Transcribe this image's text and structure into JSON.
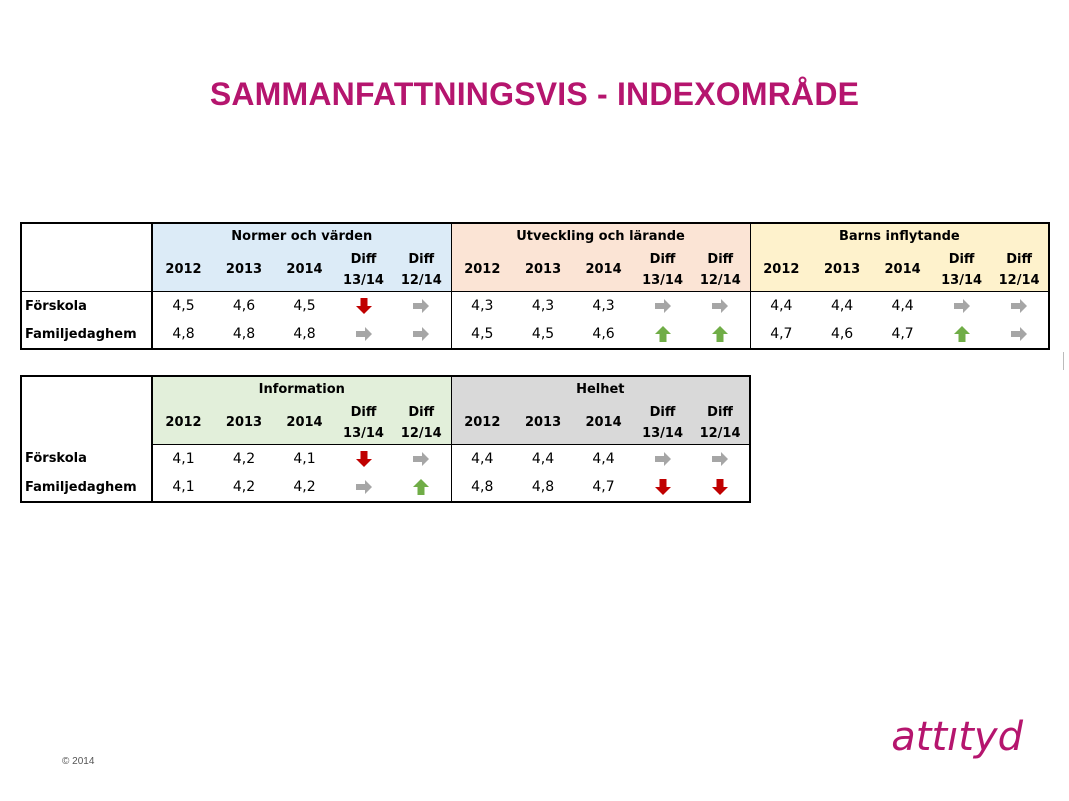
{
  "title": "SAMMANFATTNINGSVIS  - INDEXOMRÅDE",
  "logo": "attıtyd",
  "copyright": "© 2014",
  "colors": {
    "title": "#b5156e",
    "arrow_down": "#c00000",
    "arrow_up": "#70ad47",
    "arrow_flat": "#a6a6a6"
  },
  "col_headers": {
    "y2012": "2012",
    "y2013": "2013",
    "y2014": "2014",
    "diff": "Diff",
    "d1314": "13/14",
    "d1214": "12/14"
  },
  "table1": {
    "groups": [
      "Normer och värden",
      "Utveckling och lärande",
      "Barns inflytande"
    ],
    "rows": [
      {
        "label": "Förskola",
        "g": [
          {
            "v": [
              "4,5",
              "4,6",
              "4,5"
            ],
            "a": [
              "down",
              "flat"
            ]
          },
          {
            "v": [
              "4,3",
              "4,3",
              "4,3"
            ],
            "a": [
              "flat",
              "flat"
            ]
          },
          {
            "v": [
              "4,4",
              "4,4",
              "4,4"
            ],
            "a": [
              "flat",
              "flat"
            ]
          }
        ]
      },
      {
        "label": "Familjedaghem",
        "g": [
          {
            "v": [
              "4,8",
              "4,8",
              "4,8"
            ],
            "a": [
              "flat",
              "flat"
            ]
          },
          {
            "v": [
              "4,5",
              "4,5",
              "4,6"
            ],
            "a": [
              "up",
              "up"
            ]
          },
          {
            "v": [
              "4,7",
              "4,6",
              "4,7"
            ],
            "a": [
              "up",
              "flat"
            ]
          }
        ]
      }
    ]
  },
  "table2": {
    "groups": [
      "Information",
      "Helhet"
    ],
    "rows": [
      {
        "label": "Förskola",
        "g": [
          {
            "v": [
              "4,1",
              "4,2",
              "4,1"
            ],
            "a": [
              "down",
              "flat"
            ]
          },
          {
            "v": [
              "4,4",
              "4,4",
              "4,4"
            ],
            "a": [
              "flat",
              "flat"
            ]
          }
        ]
      },
      {
        "label": "Familjedaghem",
        "g": [
          {
            "v": [
              "4,1",
              "4,2",
              "4,2"
            ],
            "a": [
              "flat",
              "up"
            ]
          },
          {
            "v": [
              "4,8",
              "4,8",
              "4,7"
            ],
            "a": [
              "down",
              "down"
            ]
          }
        ]
      }
    ]
  }
}
